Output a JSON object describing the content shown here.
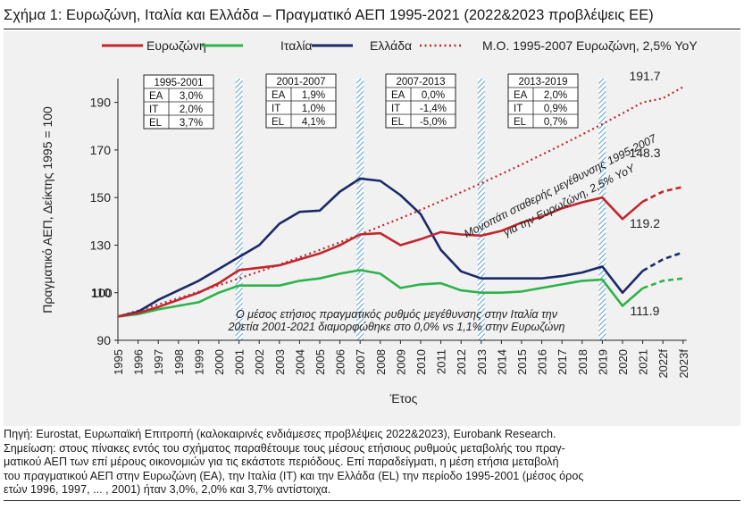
{
  "title": "Σχήμα 1: Ευρωζώνη, Ιταλία και Ελλάδα – Πραγματικό ΑΕΠ 1995-2021 (2022&2023 προβλέψεις ΕΕ)",
  "footer": {
    "source": "Πηγή: Eurostat, Ευρωπαϊκή Επιτροπή (καλοκαιρινές ενδιάμεσες προβλέψεις 2022&2023), Eurobank Research.",
    "note1": "Σημείωση: στους πίνακες εντός του σχήματος παραθέτουμε τους μέσους ετήσιους ρυθμούς μεταβολής του πραγ-",
    "note2": "ματικού ΑΕΠ των επί μέρους οικονομιών για τις εκάστοτε περιόδους. Επί παραδείγματι, η μέση ετήσια μεταβολή",
    "note3": "του πραγματικού ΑΕΠ στην Ευρωζώνη (ΕΑ), την Ιταλία (ΙΤ) και την Ελλάδα (EL) την περίοδο 1995-2001 (μέσος όρος",
    "note4": "ετών 1996, 1997, ... , 2001) ήταν 3,0%, 2,0% και 3,7% αντίστοιχα."
  },
  "colors": {
    "eurozone": "#c0272d",
    "italy": "#2db34a",
    "greece": "#1b2a66",
    "ma": "#c0272d",
    "band": "#7eb6de"
  },
  "chart_data": {
    "type": "line",
    "ylabel": "Πραγματικό ΑΕΠ, Δείκτης 1995 = 100",
    "xlabel": "Έτος",
    "ylim": [
      90,
      200
    ],
    "yticks": [
      90,
      110,
      130,
      150,
      170,
      190
    ],
    "categories": [
      "1995",
      "1996",
      "1997",
      "1998",
      "1999",
      "2000",
      "2001",
      "2002",
      "2003",
      "2004",
      "2005",
      "2006",
      "2007",
      "2008",
      "2009",
      "2010",
      "2011",
      "2012",
      "2013",
      "2014",
      "2015",
      "2016",
      "2017",
      "2018",
      "2019",
      "2020",
      "2021",
      "2022f",
      "2023f"
    ],
    "series": [
      {
        "name": "Ευρωζώνη",
        "color": "#c0272d",
        "style": "solid",
        "values": [
          100,
          101.5,
          104,
          107,
          110,
          114,
          119.5,
          120.5,
          121.5,
          124,
          126.5,
          130,
          134.5,
          135,
          130,
          132.5,
          135.5,
          134.5,
          134,
          136,
          139.5,
          142,
          145.5,
          148,
          150,
          141,
          148.3,
          152.5,
          154.5
        ]
      },
      {
        "name": "Ιταλία",
        "color": "#2db34a",
        "style": "solid",
        "values": [
          100,
          101,
          103,
          104.5,
          106,
          110,
          113,
          113,
          113,
          115,
          116,
          118,
          119.5,
          118,
          112,
          113.5,
          114,
          111,
          110,
          110,
          110.5,
          112,
          113.5,
          115,
          115.5,
          104.5,
          111.9,
          115,
          116
        ]
      },
      {
        "name": "Ελλάδα",
        "color": "#1b2a66",
        "style": "solid",
        "values": [
          100,
          102,
          107,
          111,
          115,
          120,
          125,
          130,
          139,
          144,
          144.5,
          152.5,
          158,
          157,
          151,
          143,
          128,
          119,
          116,
          116,
          116,
          116,
          117,
          118.5,
          121,
          110,
          119.2,
          124,
          127
        ]
      },
      {
        "name": "Μ.Ο. 1995-2007 Ευρωζώνη, 2,5% YoY",
        "color": "#c0272d",
        "style": "dotted",
        "values": [
          100,
          102.5,
          105.1,
          107.7,
          110.4,
          113.1,
          116,
          118.9,
          121.8,
          124.9,
          128,
          131.2,
          134.5,
          137.9,
          141.3,
          144.8,
          148.5,
          152.2,
          156,
          159.9,
          163.9,
          168,
          172.2,
          176.5,
          180.9,
          185.4,
          190,
          191.7,
          196.5
        ]
      }
    ],
    "forecast_from_index": 26,
    "value_labels": [
      "100",
      "191.7",
      "148.3",
      "119.2",
      "111.9"
    ],
    "period_markers": [
      "2001",
      "2007",
      "2013",
      "2019"
    ],
    "period_tables": [
      {
        "title": "1995-2001",
        "rows": [
          [
            "EA",
            "3,0%"
          ],
          [
            "IT",
            "2,0%"
          ],
          [
            "EL",
            "3,7%"
          ]
        ]
      },
      {
        "title": "2001-2007",
        "rows": [
          [
            "EA",
            "1,9%"
          ],
          [
            "IT",
            "1,0%"
          ],
          [
            "EL",
            "4,1%"
          ]
        ]
      },
      {
        "title": "2007-2013",
        "rows": [
          [
            "EA",
            "0,0%"
          ],
          [
            "IT",
            "-1,4%"
          ],
          [
            "EL",
            "-5,0%"
          ]
        ]
      },
      {
        "title": "2013-2019",
        "rows": [
          [
            "EA",
            "2,0%"
          ],
          [
            "IT",
            "0,9%"
          ],
          [
            "EL",
            "0,7%"
          ]
        ]
      }
    ],
    "annotations": {
      "trend_line1": "Μονοπάτι σταθερής μεγέθυνσης 1995-2007",
      "trend_line2": "για την Ευρωζώνη, 2,5% YoY",
      "italy_line1": "Ο μέσος ετήσιος πραγματικός ρυθμός μεγέθυνσης στην Ιταλία την",
      "italy_line2": "20ετία 2001-2021 διαμορφώθηκε στο 0,0% vs 1,1% στην Ευρωζώνη"
    }
  }
}
